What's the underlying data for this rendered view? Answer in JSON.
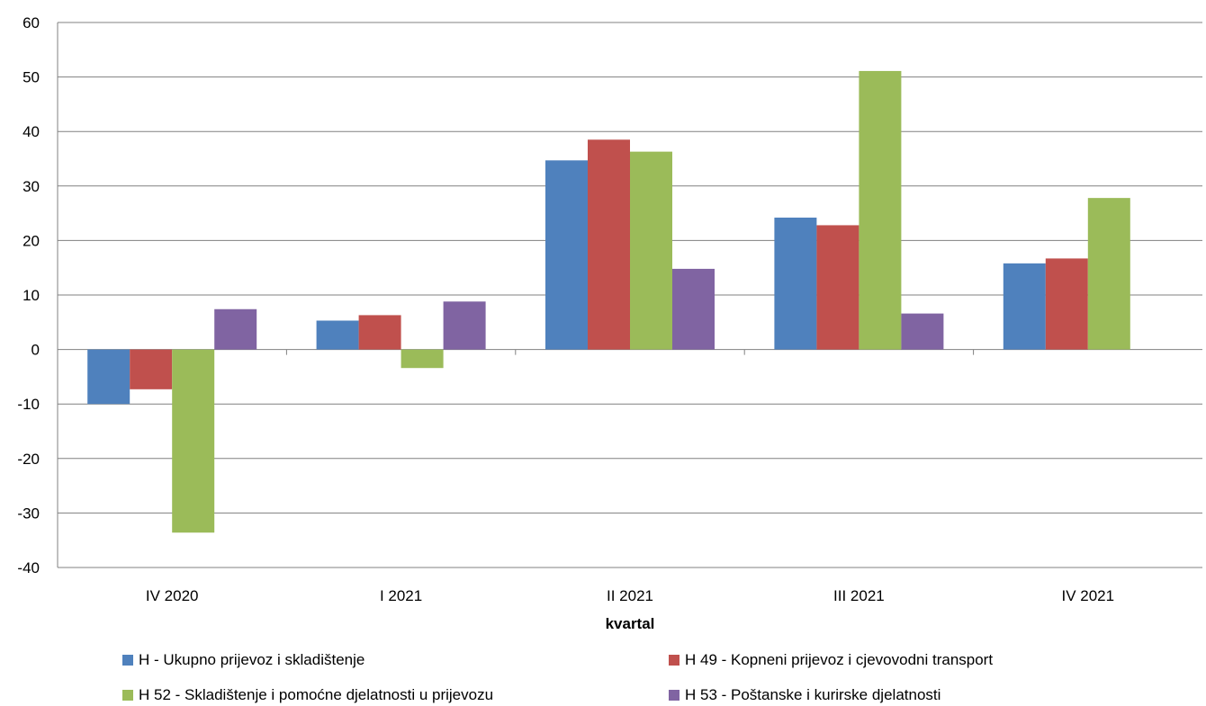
{
  "chart_data": {
    "type": "bar",
    "categories": [
      "IV 2020",
      "I 2021",
      "II 2021",
      "III 2021",
      "IV 2021"
    ],
    "series": [
      {
        "name": "H - Ukupno prijevoz i skladištenje",
        "color": "#4F81BD",
        "values": [
          -10,
          5.3,
          34.7,
          24.2,
          15.8
        ]
      },
      {
        "name": "H 49 - Kopneni prijevoz i cjevovodni transport",
        "color": "#C0504D",
        "values": [
          -7.3,
          6.3,
          38.5,
          22.8,
          16.7
        ]
      },
      {
        "name": "H 52 - Skladištenje i pomoćne djelatnosti u prijevozu",
        "color": "#9BBB59",
        "values": [
          -33.6,
          -3.4,
          36.3,
          51.1,
          27.8
        ]
      },
      {
        "name": "H 53 - Poštanske i kurirske djelatnosti",
        "color": "#8064A2",
        "values": [
          7.4,
          8.8,
          14.8,
          6.6,
          0
        ]
      }
    ],
    "xlabel": "kvartal",
    "ylabel": "",
    "ylim": [
      -40,
      60
    ],
    "yticks": [
      60,
      50,
      40,
      30,
      20,
      10,
      0,
      -10,
      -20,
      -30,
      -40
    ],
    "grid": true,
    "legend_position": "bottom"
  }
}
